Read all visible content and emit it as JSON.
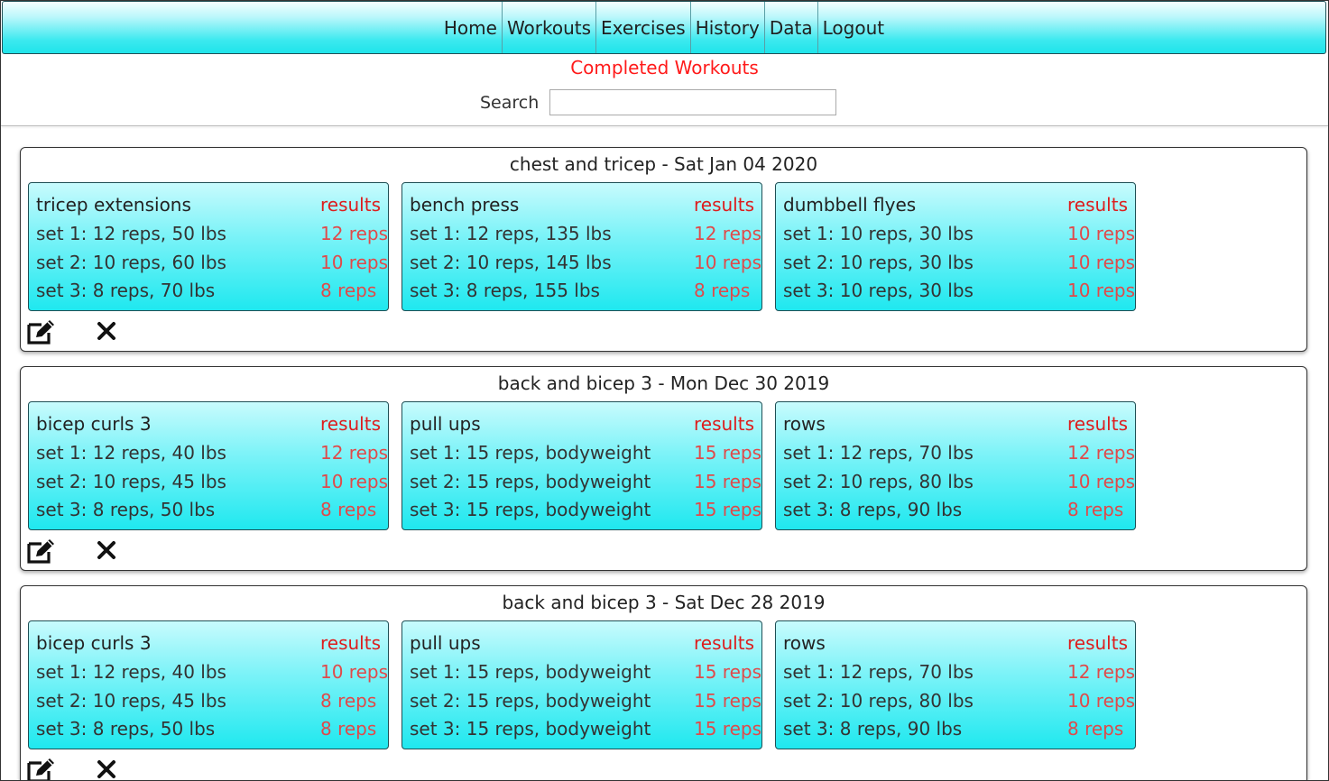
{
  "nav": {
    "items": [
      "Home",
      "Workouts",
      "Exercises",
      "History",
      "Data",
      "Logout"
    ]
  },
  "page": {
    "title": "Completed Workouts",
    "search_label": "Search",
    "search_value": ""
  },
  "colors": {
    "accent_red": "#ff1a1a",
    "cyan": "#1fe8ef"
  },
  "icons": {
    "edit": "edit-icon",
    "delete": "close-icon"
  },
  "workouts": [
    {
      "title": "chest and tricep - Sat Jan 04 2020",
      "exercises": [
        {
          "name": "tricep extensions",
          "results_label": "results",
          "sets": [
            "set 1: 12 reps, 50 lbs",
            "set 2: 10 reps, 60 lbs",
            "set 3: 8 reps, 70 lbs"
          ],
          "results": [
            "12 reps",
            "10 reps",
            "8 reps"
          ]
        },
        {
          "name": "bench press",
          "results_label": "results",
          "sets": [
            "set 1: 12 reps, 135 lbs",
            "set 2: 10 reps, 145 lbs",
            "set 3: 8 reps, 155 lbs"
          ],
          "results": [
            "12 reps",
            "10 reps",
            "8 reps"
          ]
        },
        {
          "name": "dumbbell flyes",
          "results_label": "results",
          "sets": [
            "set 1: 10 reps, 30 lbs",
            "set 2: 10 reps, 30 lbs",
            "set 3: 10 reps, 30 lbs"
          ],
          "results": [
            "10 reps",
            "10 reps",
            "10 reps"
          ]
        }
      ]
    },
    {
      "title": "back and bicep 3 - Mon Dec 30 2019",
      "exercises": [
        {
          "name": "bicep curls 3",
          "results_label": "results",
          "sets": [
            "set 1: 12 reps, 40 lbs",
            "set 2: 10 reps, 45 lbs",
            "set 3: 8 reps, 50 lbs"
          ],
          "results": [
            "12 reps",
            "10 reps",
            "8 reps"
          ]
        },
        {
          "name": "pull ups",
          "results_label": "results",
          "sets": [
            "set 1: 15 reps, bodyweight",
            "set 2: 15 reps, bodyweight",
            "set 3: 15 reps, bodyweight"
          ],
          "results": [
            "15 reps",
            "15 reps",
            "15 reps"
          ]
        },
        {
          "name": "rows",
          "results_label": "results",
          "sets": [
            "set 1: 12 reps, 70 lbs",
            "set 2: 10 reps, 80 lbs",
            "set 3: 8 reps, 90 lbs"
          ],
          "results": [
            "12 reps",
            "10 reps",
            "8 reps"
          ]
        }
      ]
    },
    {
      "title": "back and bicep 3 - Sat Dec 28 2019",
      "exercises": [
        {
          "name": "bicep curls 3",
          "results_label": "results",
          "sets": [
            "set 1: 12 reps, 40 lbs",
            "set 2: 10 reps, 45 lbs",
            "set 3: 8 reps, 50 lbs"
          ],
          "results": [
            "10 reps",
            "8 reps",
            "8 reps"
          ]
        },
        {
          "name": "pull ups",
          "results_label": "results",
          "sets": [
            "set 1: 15 reps, bodyweight",
            "set 2: 15 reps, bodyweight",
            "set 3: 15 reps, bodyweight"
          ],
          "results": [
            "15 reps",
            "15 reps",
            "15 reps"
          ]
        },
        {
          "name": "rows",
          "results_label": "results",
          "sets": [
            "set 1: 12 reps, 70 lbs",
            "set 2: 10 reps, 80 lbs",
            "set 3: 8 reps, 90 lbs"
          ],
          "results": [
            "12 reps",
            "10 reps",
            "8 reps"
          ]
        }
      ]
    }
  ]
}
